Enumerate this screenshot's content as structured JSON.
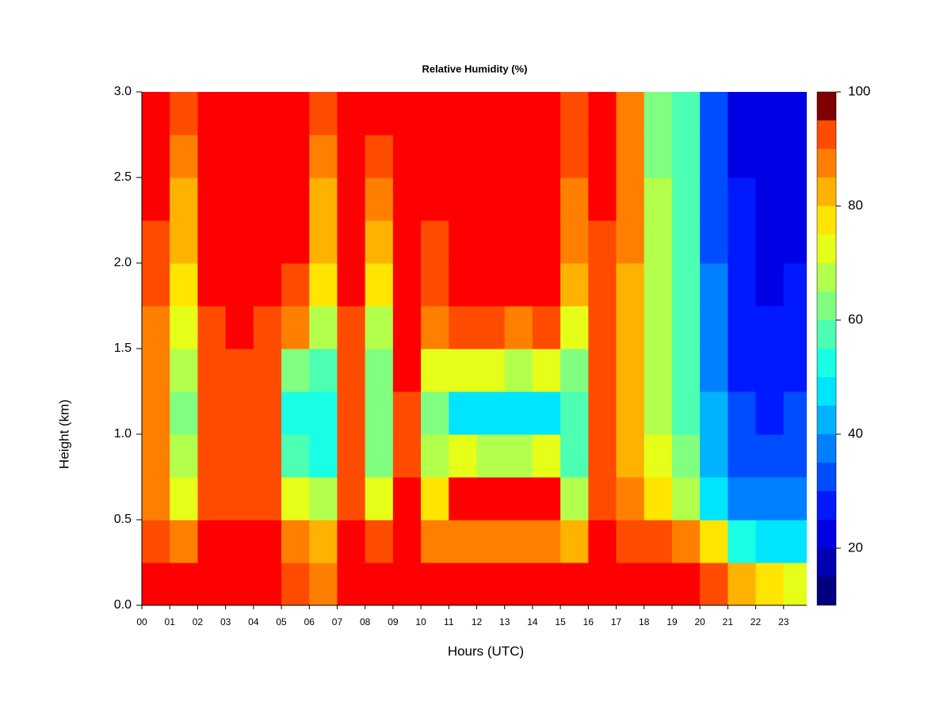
{
  "chart_data": {
    "type": "heatmap",
    "title": "Relative Humidity (%)",
    "xlabel": "Hours (UTC)",
    "ylabel": "Height (km)",
    "x": [
      0,
      1,
      2,
      3,
      4,
      5,
      6,
      7,
      8,
      9,
      10,
      11,
      12,
      13,
      14,
      15,
      16,
      17,
      18,
      19,
      20,
      21,
      22,
      23
    ],
    "y": [
      0,
      0.25,
      0.5,
      0.75,
      1,
      1.25,
      1.5,
      1.75,
      2,
      2.25,
      2.5,
      2.75
    ],
    "z": [
      [
        95,
        90,
        88,
        88,
        88,
        88,
        88,
        90,
        93,
        96,
        97,
        97
      ],
      [
        96,
        85,
        70,
        65,
        62,
        65,
        70,
        78,
        82,
        80,
        85,
        90
      ],
      [
        97,
        96,
        92,
        90,
        90,
        92,
        94,
        95,
        96,
        97,
        97,
        97
      ],
      [
        97,
        97,
        94,
        93,
        93,
        94,
        95,
        96,
        97,
        97,
        97,
        97
      ],
      [
        97,
        96,
        92,
        90,
        90,
        92,
        94,
        95,
        96,
        97,
        97,
        97
      ],
      [
        93,
        85,
        72,
        55,
        52,
        60,
        85,
        92,
        95,
        96,
        97,
        97
      ],
      [
        88,
        82,
        65,
        50,
        50,
        55,
        65,
        75,
        80,
        82,
        88,
        90
      ],
      [
        97,
        95,
        92,
        92,
        92,
        93,
        94,
        95,
        96,
        97,
        97,
        97
      ],
      [
        97,
        90,
        70,
        62,
        60,
        62,
        68,
        75,
        80,
        85,
        92,
        95
      ],
      [
        97,
        97,
        95,
        94,
        94,
        95,
        96,
        97,
        97,
        97,
        97,
        97
      ],
      [
        96,
        88,
        75,
        65,
        60,
        70,
        85,
        90,
        93,
        95,
        97,
        97
      ],
      [
        97,
        85,
        95,
        70,
        48,
        72,
        92,
        97,
        97,
        97,
        97,
        97
      ],
      [
        97,
        85,
        95,
        68,
        45,
        70,
        90,
        97,
        97,
        97,
        97,
        97
      ],
      [
        97,
        85,
        95,
        68,
        45,
        68,
        88,
        97,
        97,
        97,
        97,
        97
      ],
      [
        97,
        85,
        95,
        70,
        47,
        70,
        90,
        97,
        97,
        97,
        97,
        97
      ],
      [
        96,
        80,
        65,
        55,
        55,
        60,
        72,
        82,
        85,
        88,
        90,
        92
      ],
      [
        97,
        95,
        92,
        90,
        90,
        90,
        92,
        93,
        94,
        95,
        95,
        96
      ],
      [
        97,
        92,
        85,
        82,
        82,
        82,
        82,
        84,
        85,
        85,
        86,
        88
      ],
      [
        97,
        90,
        75,
        70,
        68,
        66,
        65,
        65,
        65,
        65,
        64,
        64
      ],
      [
        95,
        88,
        68,
        62,
        58,
        56,
        55,
        55,
        55,
        55,
        55,
        55
      ],
      [
        92,
        75,
        48,
        42,
        40,
        38,
        36,
        35,
        34,
        33,
        32,
        30
      ],
      [
        82,
        50,
        38,
        32,
        30,
        28,
        27,
        26,
        25,
        25,
        24,
        24
      ],
      [
        75,
        45,
        35,
        30,
        28,
        26,
        25,
        24,
        23,
        22,
        21,
        20
      ],
      [
        70,
        45,
        38,
        32,
        30,
        28,
        26,
        25,
        23,
        22,
        21,
        21
      ]
    ],
    "cell_width": 1,
    "cell_height": 0.25,
    "xlim": [
      0,
      23.83
    ],
    "ylim": [
      0,
      3
    ],
    "xticks": [
      {
        "value": 0,
        "label": "00"
      },
      {
        "value": 1,
        "label": "01"
      },
      {
        "value": 2,
        "label": "02"
      },
      {
        "value": 3,
        "label": "03"
      },
      {
        "value": 4,
        "label": "04"
      },
      {
        "value": 5,
        "label": "05"
      },
      {
        "value": 6,
        "label": "06"
      },
      {
        "value": 7,
        "label": "07"
      },
      {
        "value": 8,
        "label": "08"
      },
      {
        "value": 9,
        "label": "09"
      },
      10,
      11,
      12,
      13,
      14,
      15,
      16,
      17,
      18,
      19,
      20,
      21,
      22,
      23
    ],
    "yticks": [
      {
        "value": 0,
        "label": "0.0"
      },
      0.5,
      {
        "value": 1,
        "label": "1.0"
      },
      1.5,
      {
        "value": 2,
        "label": "2.0"
      },
      2.5,
      {
        "value": 3,
        "label": "3.0"
      }
    ],
    "colorbar": {
      "levels": [
        10,
        15,
        20,
        25,
        30,
        35,
        40,
        45,
        50,
        55,
        60,
        65,
        70,
        75,
        80,
        85,
        90,
        95,
        100
      ],
      "colors": [
        "#00007f",
        "#0000b2",
        "#0000e5",
        "#0019ff",
        "#004cff",
        "#0080ff",
        "#00b2ff",
        "#00e5ff",
        "#19ffe5",
        "#4cffb2",
        "#80ff80",
        "#b2ff4c",
        "#e5ff19",
        "#ffe500",
        "#ffb200",
        "#ff8000",
        "#ff4c00",
        "#ff0000"
      ],
      "top_color": "#7f0000",
      "ticks": [
        20,
        40,
        60,
        80,
        100
      ]
    }
  }
}
